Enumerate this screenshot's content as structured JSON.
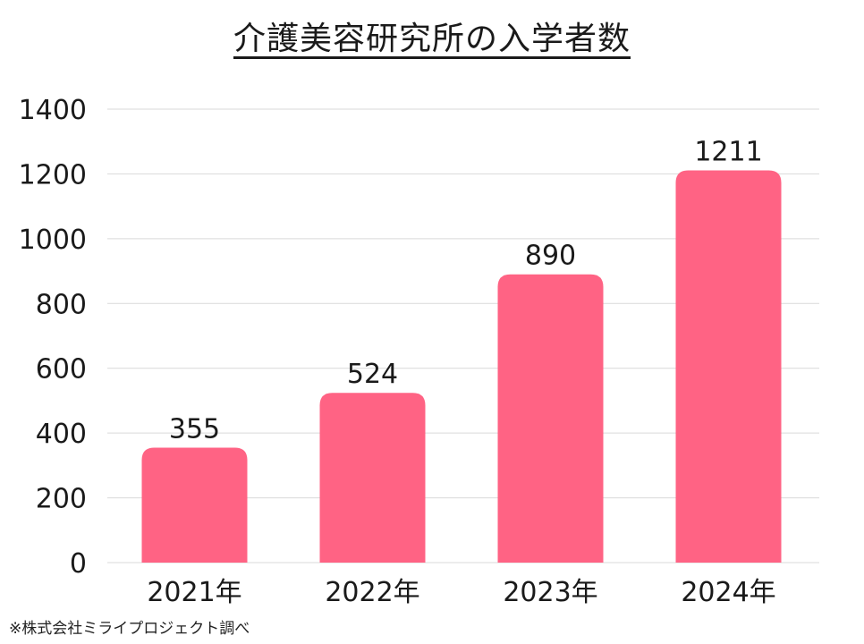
{
  "chart_data": {
    "type": "bar",
    "title": "介護美容研究所の入学者数",
    "categories": [
      "2021年",
      "2022年",
      "2023年",
      "2024年"
    ],
    "values": [
      355,
      524,
      890,
      1211
    ],
    "data_labels": [
      "355",
      "524",
      "890",
      "1211"
    ],
    "yticks": [
      "0",
      "200",
      "400",
      "600",
      "800",
      "1000",
      "1200",
      "1400"
    ],
    "ylim": [
      0,
      1400
    ],
    "xlabel": "",
    "ylabel": "",
    "grid": true,
    "bar_color": "#ff6384",
    "grid_color": "#d9d9d9"
  },
  "footnote": "※株式会社ミライプロジェクト調べ"
}
